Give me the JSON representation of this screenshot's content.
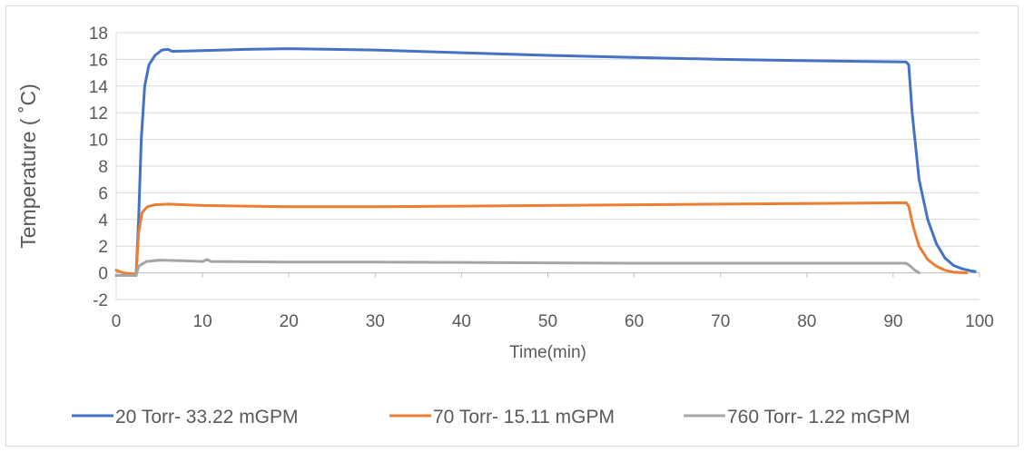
{
  "chart_data": {
    "type": "line",
    "title": "",
    "xlabel": "Time(min)",
    "ylabel": "Temperature ( ˚C)",
    "xlim": [
      0,
      100
    ],
    "ylim": [
      -2,
      18
    ],
    "x_ticks": [
      0,
      10,
      20,
      30,
      40,
      50,
      60,
      70,
      80,
      90,
      100
    ],
    "y_ticks": [
      -2,
      0,
      2,
      4,
      6,
      8,
      10,
      12,
      14,
      16,
      18
    ],
    "grid": "horizontal",
    "legend_position": "bottom",
    "series": [
      {
        "name": "20 Torr- 33.22 mGPM",
        "color": "#4472C4",
        "points": [
          [
            0,
            -0.2
          ],
          [
            2.3,
            -0.2
          ],
          [
            2.6,
            4
          ],
          [
            2.9,
            10
          ],
          [
            3.3,
            14
          ],
          [
            3.8,
            15.6
          ],
          [
            4.5,
            16.3
          ],
          [
            5.3,
            16.7
          ],
          [
            6,
            16.75
          ],
          [
            6.5,
            16.6
          ],
          [
            10,
            16.65
          ],
          [
            15,
            16.75
          ],
          [
            20,
            16.8
          ],
          [
            25,
            16.75
          ],
          [
            30,
            16.7
          ],
          [
            40,
            16.5
          ],
          [
            50,
            16.3
          ],
          [
            60,
            16.15
          ],
          [
            70,
            16.0
          ],
          [
            80,
            15.9
          ],
          [
            91.5,
            15.8
          ],
          [
            91.8,
            15.6
          ],
          [
            92.2,
            12
          ],
          [
            93,
            7
          ],
          [
            94,
            4
          ],
          [
            95,
            2.2
          ],
          [
            96,
            1.1
          ],
          [
            97,
            0.55
          ],
          [
            98,
            0.3
          ],
          [
            99,
            0.15
          ],
          [
            99.5,
            0.1
          ]
        ]
      },
      {
        "name": "70 Torr- 15.11 mGPM",
        "color": "#ED7D31",
        "points": [
          [
            0,
            0.2
          ],
          [
            0.8,
            0
          ],
          [
            2.3,
            -0.1
          ],
          [
            2.6,
            3
          ],
          [
            3,
            4.5
          ],
          [
            3.6,
            4.95
          ],
          [
            4.5,
            5.1
          ],
          [
            6,
            5.15
          ],
          [
            10,
            5.05
          ],
          [
            15,
            5.0
          ],
          [
            20,
            4.95
          ],
          [
            30,
            4.95
          ],
          [
            40,
            5.0
          ],
          [
            50,
            5.05
          ],
          [
            60,
            5.1
          ],
          [
            70,
            5.15
          ],
          [
            80,
            5.2
          ],
          [
            91.5,
            5.25
          ],
          [
            91.8,
            5.0
          ],
          [
            92.3,
            3.5
          ],
          [
            93,
            2.0
          ],
          [
            94,
            1.0
          ],
          [
            95,
            0.5
          ],
          [
            96,
            0.2
          ],
          [
            97,
            0.05
          ],
          [
            98.5,
            0
          ]
        ]
      },
      {
        "name": "760 Torr- 1.22 mGPM",
        "color": "#A5A5A5",
        "points": [
          [
            0,
            -0.2
          ],
          [
            2.3,
            -0.2
          ],
          [
            2.6,
            0.5
          ],
          [
            3.5,
            0.85
          ],
          [
            5,
            0.95
          ],
          [
            8,
            0.9
          ],
          [
            10,
            0.85
          ],
          [
            10.5,
            1.0
          ],
          [
            11,
            0.85
          ],
          [
            20,
            0.8
          ],
          [
            30,
            0.8
          ],
          [
            40,
            0.78
          ],
          [
            50,
            0.75
          ],
          [
            60,
            0.72
          ],
          [
            70,
            0.72
          ],
          [
            80,
            0.72
          ],
          [
            91.5,
            0.72
          ],
          [
            92,
            0.5
          ],
          [
            92.5,
            0.2
          ],
          [
            93,
            0
          ]
        ]
      }
    ]
  }
}
